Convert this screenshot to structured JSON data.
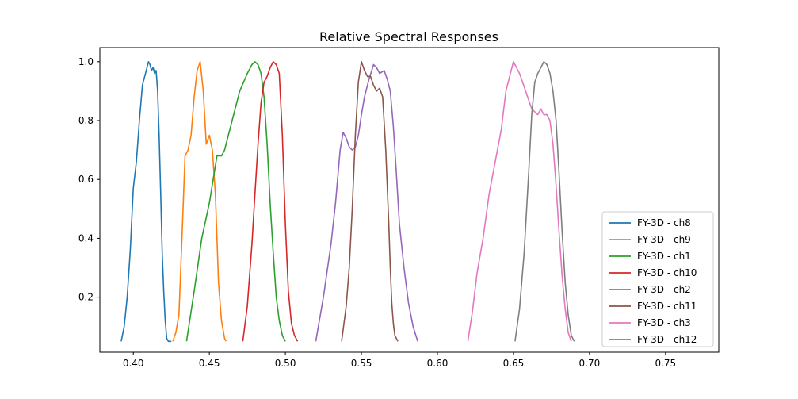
{
  "chart_data": {
    "type": "line",
    "title": "Relative Spectral Responses",
    "xlabel": "",
    "ylabel": "",
    "xlim": [
      0.378,
      0.785
    ],
    "ylim": [
      0.013,
      1.048
    ],
    "x_ticks": [
      "0.40",
      "0.45",
      "0.50",
      "0.55",
      "0.60",
      "0.65",
      "0.70",
      "0.75"
    ],
    "y_ticks": [
      "0.2",
      "0.4",
      "0.6",
      "0.8",
      "1.0"
    ],
    "legend_position": "lower-right",
    "grid": false,
    "series": [
      {
        "name": "FY-3D - ch8",
        "color": "#1f77b4",
        "x": [
          0.392,
          0.394,
          0.396,
          0.398,
          0.4,
          0.402,
          0.404,
          0.406,
          0.408,
          0.41,
          0.411,
          0.412,
          0.413,
          0.414,
          0.415,
          0.416,
          0.417,
          0.418,
          0.419,
          0.42,
          0.421,
          0.422,
          0.423,
          0.424,
          0.425
        ],
        "y": [
          0.05,
          0.1,
          0.2,
          0.36,
          0.57,
          0.66,
          0.8,
          0.92,
          0.96,
          1.0,
          0.99,
          0.97,
          0.98,
          0.96,
          0.97,
          0.9,
          0.75,
          0.55,
          0.35,
          0.22,
          0.12,
          0.06,
          0.05,
          0.05,
          0.05
        ]
      },
      {
        "name": "FY-3D - ch9",
        "color": "#ff7f0e",
        "x": [
          0.426,
          0.428,
          0.43,
          0.432,
          0.434,
          0.436,
          0.438,
          0.44,
          0.442,
          0.444,
          0.446,
          0.448,
          0.45,
          0.452,
          0.454,
          0.455,
          0.456,
          0.458,
          0.46,
          0.461
        ],
        "y": [
          0.05,
          0.08,
          0.14,
          0.4,
          0.68,
          0.7,
          0.75,
          0.88,
          0.97,
          1.0,
          0.9,
          0.72,
          0.75,
          0.7,
          0.55,
          0.4,
          0.25,
          0.12,
          0.06,
          0.05
        ]
      },
      {
        "name": "FY-3D - ch1",
        "color": "#2ca02c",
        "x": [
          0.435,
          0.44,
          0.445,
          0.45,
          0.455,
          0.458,
          0.46,
          0.465,
          0.47,
          0.475,
          0.478,
          0.48,
          0.482,
          0.484,
          0.486,
          0.488,
          0.49,
          0.492,
          0.494,
          0.496,
          0.498,
          0.5
        ],
        "y": [
          0.05,
          0.22,
          0.4,
          0.52,
          0.68,
          0.68,
          0.7,
          0.8,
          0.9,
          0.96,
          0.99,
          1.0,
          0.99,
          0.96,
          0.88,
          0.72,
          0.52,
          0.35,
          0.2,
          0.12,
          0.07,
          0.05
        ]
      },
      {
        "name": "FY-3D - ch10",
        "color": "#d62728",
        "x": [
          0.472,
          0.475,
          0.478,
          0.48,
          0.482,
          0.484,
          0.486,
          0.488,
          0.49,
          0.492,
          0.494,
          0.496,
          0.498,
          0.5,
          0.502,
          0.504,
          0.506,
          0.508
        ],
        "y": [
          0.05,
          0.17,
          0.38,
          0.55,
          0.72,
          0.86,
          0.93,
          0.95,
          0.98,
          1.0,
          0.99,
          0.96,
          0.75,
          0.45,
          0.22,
          0.11,
          0.07,
          0.05
        ]
      },
      {
        "name": "FY-3D - ch2",
        "color": "#9467bd",
        "x": [
          0.52,
          0.525,
          0.53,
          0.533,
          0.536,
          0.538,
          0.54,
          0.542,
          0.544,
          0.546,
          0.548,
          0.55,
          0.552,
          0.555,
          0.558,
          0.56,
          0.562,
          0.565,
          0.567,
          0.569,
          0.571,
          0.573,
          0.575,
          0.578,
          0.581,
          0.584,
          0.587
        ],
        "y": [
          0.05,
          0.2,
          0.38,
          0.52,
          0.7,
          0.76,
          0.74,
          0.71,
          0.7,
          0.71,
          0.75,
          0.82,
          0.88,
          0.94,
          0.99,
          0.98,
          0.96,
          0.97,
          0.94,
          0.9,
          0.78,
          0.62,
          0.45,
          0.3,
          0.18,
          0.1,
          0.05
        ]
      },
      {
        "name": "FY-3D - ch11",
        "color": "#8c564b",
        "x": [
          0.537,
          0.54,
          0.542,
          0.544,
          0.546,
          0.548,
          0.55,
          0.552,
          0.554,
          0.556,
          0.558,
          0.56,
          0.562,
          0.564,
          0.566,
          0.568,
          0.569,
          0.57,
          0.571,
          0.572,
          0.574
        ],
        "y": [
          0.05,
          0.17,
          0.3,
          0.5,
          0.75,
          0.93,
          1.0,
          0.97,
          0.95,
          0.95,
          0.92,
          0.9,
          0.91,
          0.88,
          0.7,
          0.45,
          0.3,
          0.18,
          0.11,
          0.07,
          0.05
        ]
      },
      {
        "name": "FY-3D - ch3",
        "color": "#e377c2",
        "x": [
          0.62,
          0.623,
          0.626,
          0.63,
          0.634,
          0.638,
          0.642,
          0.645,
          0.648,
          0.65,
          0.652,
          0.654,
          0.656,
          0.658,
          0.66,
          0.662,
          0.664,
          0.666,
          0.668,
          0.67,
          0.672,
          0.674,
          0.676,
          0.678,
          0.68,
          0.682,
          0.684,
          0.686,
          0.688
        ],
        "y": [
          0.05,
          0.15,
          0.28,
          0.4,
          0.55,
          0.66,
          0.77,
          0.9,
          0.96,
          1.0,
          0.98,
          0.96,
          0.93,
          0.9,
          0.87,
          0.84,
          0.83,
          0.82,
          0.84,
          0.82,
          0.82,
          0.8,
          0.72,
          0.58,
          0.42,
          0.27,
          0.16,
          0.08,
          0.05
        ]
      },
      {
        "name": "FY-3D - ch12",
        "color": "#7f7f7f",
        "x": [
          0.651,
          0.654,
          0.657,
          0.66,
          0.662,
          0.664,
          0.666,
          0.668,
          0.67,
          0.672,
          0.674,
          0.676,
          0.678,
          0.68,
          0.682,
          0.684,
          0.686,
          0.688,
          0.69
        ],
        "y": [
          0.05,
          0.16,
          0.35,
          0.62,
          0.82,
          0.93,
          0.96,
          0.98,
          1.0,
          0.99,
          0.96,
          0.9,
          0.8,
          0.62,
          0.42,
          0.25,
          0.14,
          0.07,
          0.05
        ]
      }
    ]
  }
}
